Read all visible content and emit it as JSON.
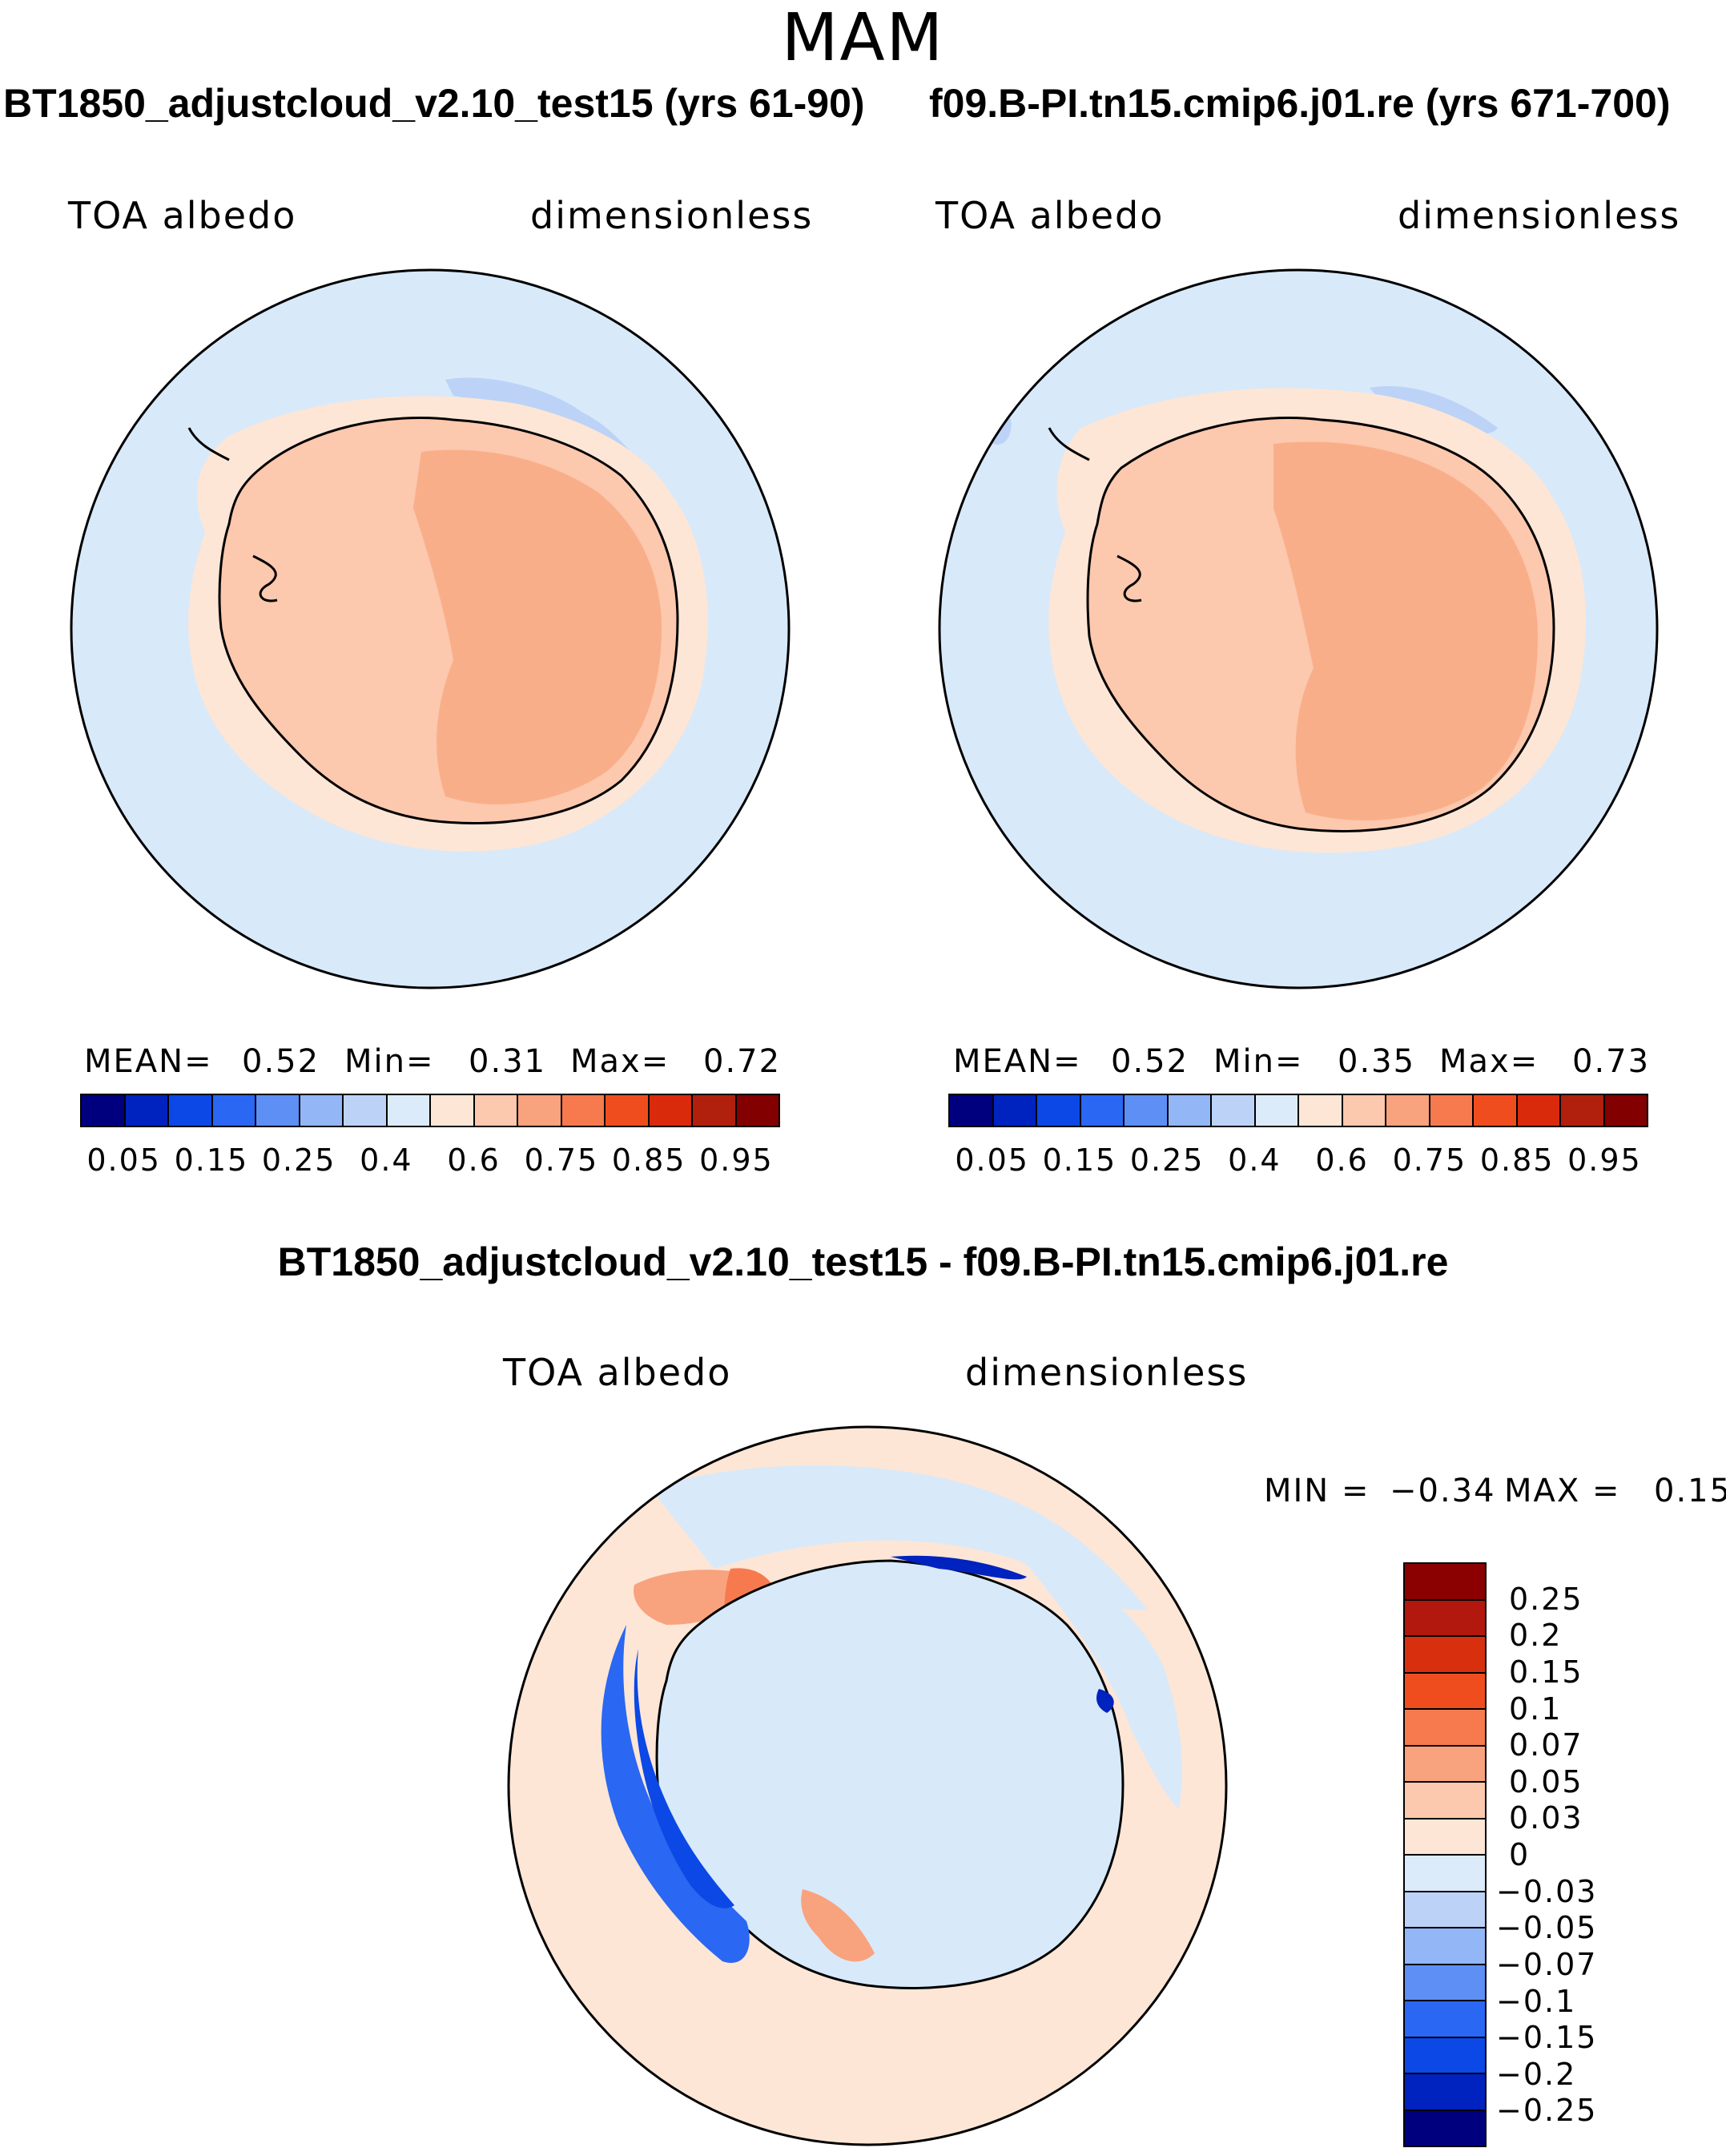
{
  "season": "MAM",
  "panels": [
    {
      "title": "BT1850_adjustcloud_v2.10_test15 (yrs 61-90)",
      "variable": "TOA albedo",
      "units": "dimensionless",
      "stats": {
        "mean_label": "MEAN=",
        "mean": "0.52",
        "min_label": "Min=",
        "min": "0.31",
        "max_label": "Max=",
        "max": "0.72"
      }
    },
    {
      "title": "f09.B-PI.tn15.cmip6.j01.re (yrs 671-700)",
      "variable": "TOA albedo",
      "units": "dimensionless",
      "stats": {
        "mean_label": "MEAN=",
        "mean": "0.52",
        "min_label": "Min=",
        "min": "0.35",
        "max_label": "Max=",
        "max": "0.73"
      }
    }
  ],
  "abs_colorbar": {
    "colors": [
      "#00007f",
      "#0022bf",
      "#0b48e6",
      "#2a67f2",
      "#5d8ff5",
      "#93b6f7",
      "#bcd3f7",
      "#dcebfa",
      "#fde6d6",
      "#fcc8ae",
      "#f9a27e",
      "#f67a4e",
      "#f04d1f",
      "#d92a0b",
      "#b0200d",
      "#820000"
    ],
    "labels": [
      "0.05",
      "0.15",
      "0.25",
      "0.4",
      "0.6",
      "0.75",
      "0.85",
      "0.95"
    ]
  },
  "diff_panel": {
    "title": "BT1850_adjustcloud_v2.10_test15 - f09.B-PI.tn15.cmip6.j01.re",
    "variable": "TOA albedo",
    "units": "dimensionless",
    "stats": {
      "min_label": "MIN =",
      "min": "−0.34",
      "max_label": "MAX =",
      "max": "0.15"
    }
  },
  "diff_colorbar": {
    "colors": [
      "#8b0000",
      "#b2180e",
      "#d8300f",
      "#f04d1f",
      "#f67a4e",
      "#f9a27e",
      "#fcc8ae",
      "#fde6d6",
      "#dcebfa",
      "#bcd3f7",
      "#93b6f7",
      "#5d8ff5",
      "#2a67f2",
      "#0b48e6",
      "#0022bf",
      "#00007f"
    ],
    "labels": [
      "0.25",
      "0.2",
      "0.15",
      "0.1",
      "0.07",
      "0.05",
      "0.03",
      "0",
      "−0.03",
      "−0.05",
      "−0.07",
      "−0.1",
      "−0.15",
      "−0.2",
      "−0.25"
    ]
  },
  "map_colors": {
    "ocean": "#d8e9fa",
    "coast_band": "#fde6d6",
    "continent": "#fcc8ae",
    "east_plateau": "#f9ae8a",
    "sea_ice_low": "#bcd3f7",
    "diff_background": "#fde6d6",
    "diff_ice": "#d8e9fa",
    "diff_pos": "#f67a4e",
    "diff_neg": "#2a67f2",
    "diff_neg_strong": "#0022bf"
  },
  "chart_data": {
    "type": "heatmap",
    "projection": "south polar stereographic",
    "season": "MAM",
    "variable": "TOA albedo",
    "units": "dimensionless",
    "panels": [
      {
        "case": "BT1850_adjustcloud_v2.10_test15",
        "years": "61-90",
        "mean": 0.52,
        "min": 0.31,
        "max": 0.72
      },
      {
        "case": "f09.B-PI.tn15.cmip6.j01.re",
        "years": "671-700",
        "mean": 0.52,
        "min": 0.35,
        "max": 0.73
      },
      {
        "case": "difference",
        "min": -0.34,
        "max": 0.15
      }
    ],
    "abs_levels": [
      0.05,
      0.15,
      0.25,
      0.4,
      0.6,
      0.75,
      0.85,
      0.95
    ],
    "diff_levels": [
      -0.25,
      -0.2,
      -0.15,
      -0.1,
      -0.07,
      -0.05,
      -0.03,
      0,
      0.03,
      0.05,
      0.07,
      0.1,
      0.15,
      0.2,
      0.25
    ]
  }
}
